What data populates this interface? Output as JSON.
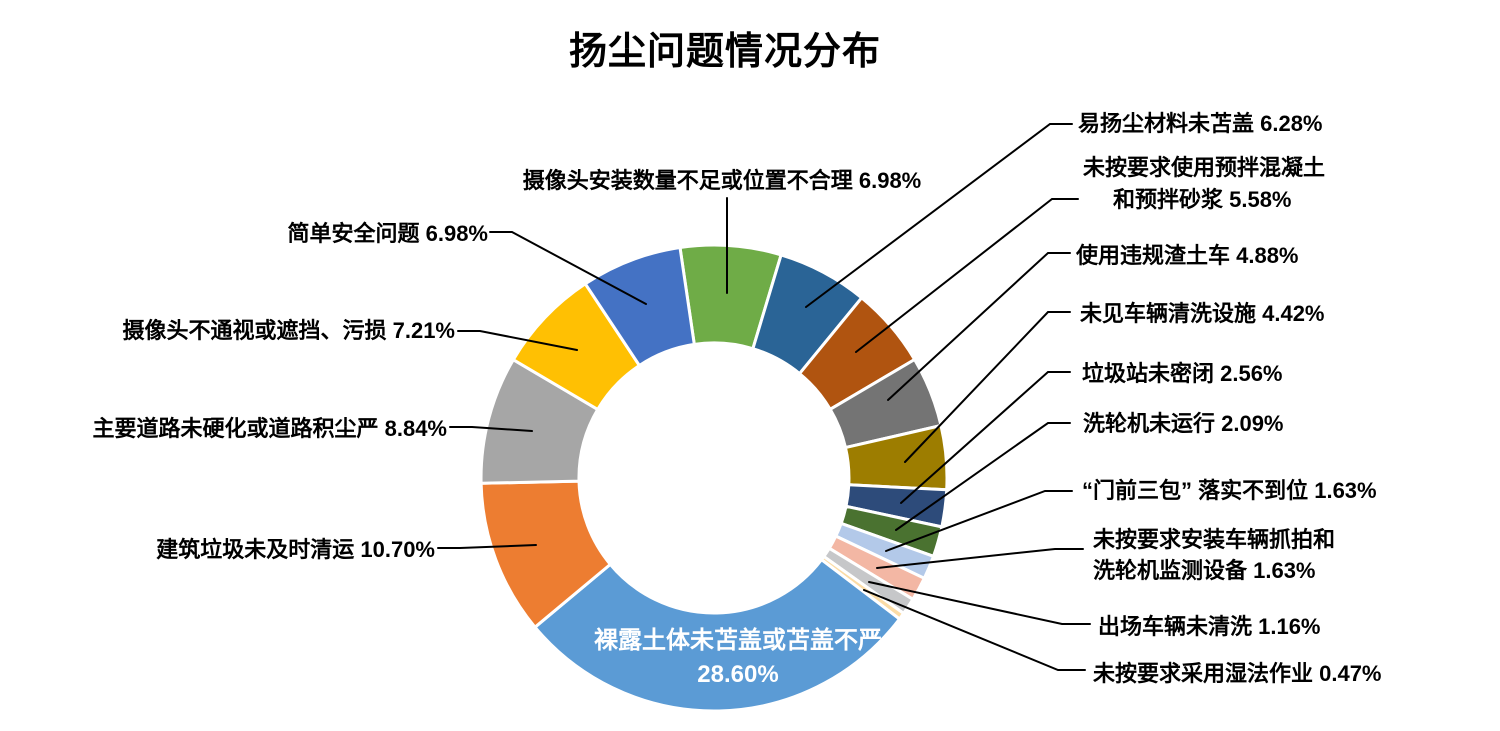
{
  "title": "扬尘问题情况分布",
  "chart_data": {
    "type": "pie",
    "subtype": "donut",
    "title": "扬尘问题情况分布",
    "start_angle_deg": -8.4,
    "donut_hole_ratio": 0.58,
    "legend": "none",
    "slices": [
      {
        "name": "摄像头安装数量不足或位置不合理",
        "value": 6.98,
        "color": "#6FAC47"
      },
      {
        "name": "易扬尘材料未苫盖",
        "value": 6.28,
        "color": "#2A6496"
      },
      {
        "name": "未按要求使用预拌混凝土和预拌砂浆",
        "value": 5.58,
        "color": "#B05410"
      },
      {
        "name": "使用违规渣土车",
        "value": 4.88,
        "color": "#747474"
      },
      {
        "name": "未见车辆清洗设施",
        "value": 4.42,
        "color": "#9D7D00"
      },
      {
        "name": "垃圾站未密闭",
        "value": 2.56,
        "color": "#2D4B7A"
      },
      {
        "name": "洗轮机未运行",
        "value": 2.09,
        "color": "#4A7230"
      },
      {
        "name": "“门前三包”落实不到位",
        "value": 1.63,
        "color": "#B3C9E9"
      },
      {
        "name": "未按要求安装车辆抓拍和洗轮机监测设备",
        "value": 1.63,
        "color": "#F3B7A4"
      },
      {
        "name": "出场车辆未清洗",
        "value": 1.16,
        "color": "#C6C7C9"
      },
      {
        "name": "未按要求采用湿法作业",
        "value": 0.47,
        "color": "#FBDCA6"
      },
      {
        "name": "裸露土体未苫盖或苫盖不严",
        "value": 28.6,
        "color": "#5B9BD5"
      },
      {
        "name": "建筑垃圾未及时清运",
        "value": 10.7,
        "color": "#ED7D31"
      },
      {
        "name": "主要道路未硬化或道路积尘严",
        "value": 8.84,
        "color": "#A6A6A6"
      },
      {
        "name": "摄像头不通视或遮挡、污损",
        "value": 7.21,
        "color": "#FFC003"
      },
      {
        "name": "简单安全问题",
        "value": 6.98,
        "color": "#4472C4"
      }
    ]
  },
  "callouts": {
    "cam_install": {
      "lines": [
        "摄像头安装数量不足或位置不合理 6.98%"
      ]
    },
    "dust_material": {
      "lines": [
        "易扬尘材料未苫盖 6.28%"
      ]
    },
    "premixed": {
      "lines": [
        "未按要求使用预拌混凝土",
        "和预拌砂浆 5.58%"
      ]
    },
    "slag_truck": {
      "lines": [
        "使用违规渣土车  4.88%"
      ]
    },
    "wash_facility": {
      "lines": [
        "未见车辆清洗设施 4.42%"
      ]
    },
    "garbage_station": {
      "lines": [
        "垃圾站未密闭 2.56%"
      ]
    },
    "wheel_washer": {
      "lines": [
        "洗轮机未运行 2.09%"
      ]
    },
    "front_door": {
      "lines": [
        "“门前三包” 落实不到位 1.63%"
      ]
    },
    "capture_device": {
      "lines": [
        "未按要求安装车辆抓拍和",
        "洗轮机监测设备 1.63%"
      ]
    },
    "exit_unwashed": {
      "lines": [
        "出场车辆未清洗 1.16%"
      ]
    },
    "wet_method": {
      "lines": [
        "未按要求采用湿法作业  0.47%"
      ]
    },
    "simple_safety": {
      "lines": [
        "简单安全问题  6.98%"
      ]
    },
    "cam_blocked": {
      "lines": [
        "摄像头不通视或遮挡、污损 7.21%"
      ]
    },
    "road": {
      "lines": [
        "主要道路未硬化或道路积尘严 8.84%"
      ]
    },
    "construction_waste": {
      "lines": [
        "建筑垃圾未及时清运 10.70%"
      ]
    },
    "bare_soil_center": {
      "lines": [
        "裸露土体未苫盖或苫盖不严",
        "28.60%"
      ]
    }
  }
}
